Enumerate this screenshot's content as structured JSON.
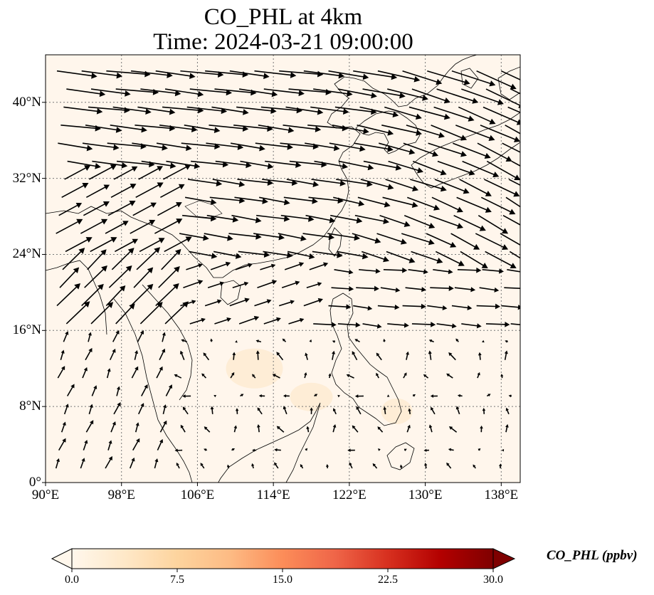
{
  "title": "CO_PHL at 4km",
  "subtitle": "Time: 2024-03-21 09:00:00",
  "chart_data": {
    "type": "map-quiver",
    "variable": "CO_PHL",
    "units": "ppbv",
    "extent": {
      "lon": [
        90,
        140
      ],
      "lat": [
        0,
        45
      ]
    },
    "lon_ticks": [
      90,
      98,
      106,
      114,
      122,
      130,
      138
    ],
    "lon_tick_labels": [
      "90°E",
      "98°E",
      "106°E",
      "114°E",
      "122°E",
      "130°E",
      "138°E"
    ],
    "lat_ticks": [
      0,
      8,
      16,
      24,
      32,
      40
    ],
    "lat_tick_labels": [
      "0°",
      "8°N",
      "16°N",
      "24°N",
      "32°N",
      "40°N"
    ],
    "gridlines": true,
    "colormap": "OrRd",
    "colorbar": {
      "min": 0.0,
      "max": 30.0,
      "ticks": [
        0.0,
        7.5,
        15.0,
        22.5,
        30.0
      ],
      "tick_labels": [
        "0.0",
        "7.5",
        "15.0",
        "22.5",
        "30.0"
      ],
      "label": "CO_PHL (ppbv)",
      "extend": "both",
      "orientation": "horizontal"
    },
    "field_range_estimate": [
      0.0,
      2.0
    ],
    "wind_pattern": "strong westerlies north of 24°N, weak monsoon flow south"
  }
}
